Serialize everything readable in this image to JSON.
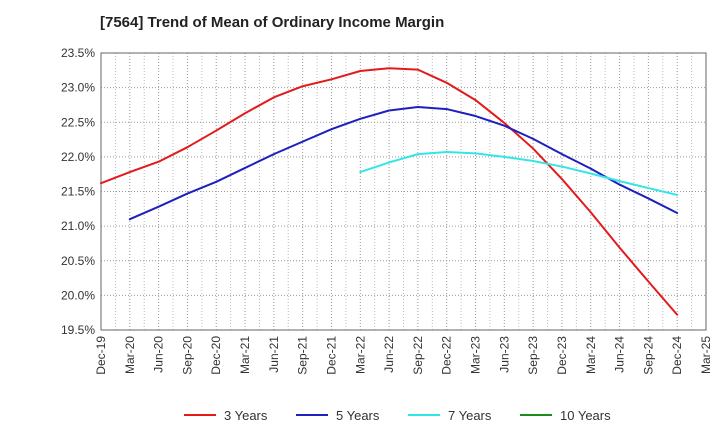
{
  "chart_data": {
    "type": "line",
    "title": "[7564]  Trend of Mean of Ordinary Income Margin",
    "xlabel": "",
    "ylabel": "",
    "categories": [
      "Dec-19",
      "Mar-20",
      "Jun-20",
      "Sep-20",
      "Dec-20",
      "Mar-21",
      "Jun-21",
      "Sep-21",
      "Dec-21",
      "Mar-22",
      "Jun-22",
      "Sep-22",
      "Dec-22",
      "Mar-23",
      "Jun-23",
      "Sep-23",
      "Dec-23",
      "Mar-24",
      "Jun-24",
      "Sep-24",
      "Dec-24",
      "Mar-25"
    ],
    "y_ticks": [
      "23.5%",
      "23.0%",
      "22.5%",
      "22.0%",
      "21.5%",
      "21.0%",
      "20.5%",
      "20.0%",
      "19.5%"
    ],
    "ylim": [
      19.5,
      23.5
    ],
    "grid": true,
    "legend_position": "bottom",
    "series": [
      {
        "name": "3 Years",
        "color": "#e31a1c",
        "values": [
          21.62,
          21.78,
          21.93,
          22.14,
          22.38,
          22.63,
          22.86,
          23.02,
          23.12,
          23.24,
          23.28,
          23.26,
          23.07,
          22.82,
          22.49,
          22.12,
          21.68,
          21.2,
          20.69,
          20.2,
          19.72,
          null
        ]
      },
      {
        "name": "5 Years",
        "color": "#1f1fbf",
        "values": [
          null,
          21.1,
          21.28,
          21.47,
          21.64,
          21.84,
          22.04,
          22.22,
          22.4,
          22.55,
          22.67,
          22.72,
          22.69,
          22.59,
          22.45,
          22.26,
          22.04,
          21.83,
          21.6,
          21.4,
          21.19,
          null
        ]
      },
      {
        "name": "7 Years",
        "color": "#33e6e6",
        "values": [
          null,
          null,
          null,
          null,
          null,
          null,
          null,
          null,
          null,
          21.78,
          21.92,
          22.04,
          22.07,
          22.05,
          22.0,
          21.94,
          21.86,
          21.76,
          21.65,
          21.55,
          21.45,
          null
        ]
      },
      {
        "name": "10 Years",
        "color": "#1a8c1a",
        "values": [
          null,
          null,
          null,
          null,
          null,
          null,
          null,
          null,
          null,
          null,
          null,
          null,
          null,
          null,
          null,
          null,
          null,
          null,
          null,
          null,
          null,
          null
        ]
      }
    ]
  }
}
